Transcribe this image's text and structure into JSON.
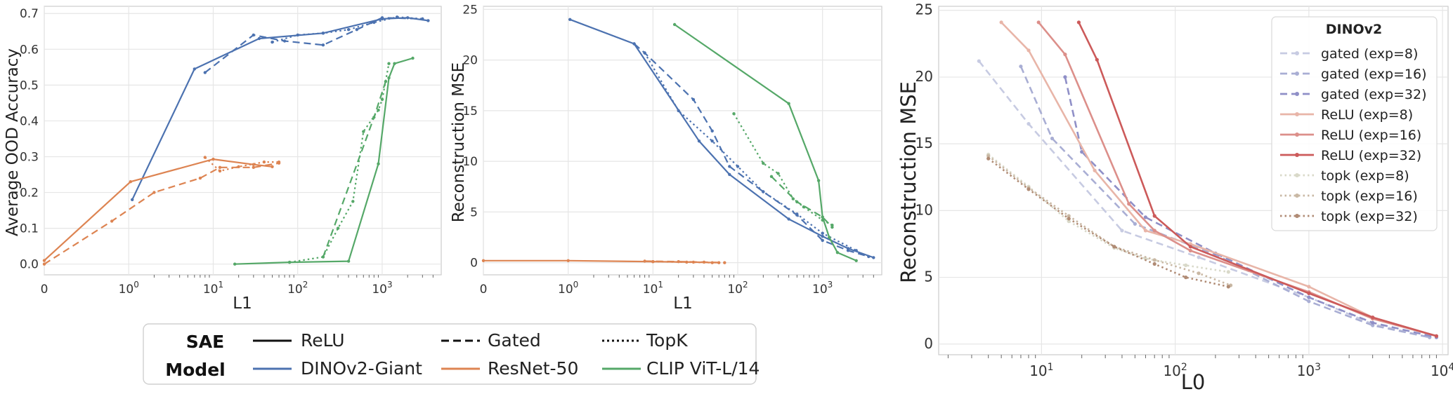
{
  "colors": {
    "DINOv2-Giant": "#4c72b0",
    "ResNet-50": "#dd8452",
    "CLIP ViT-L/14": "#55a868"
  },
  "shared_legend": {
    "sae_header": "SAE",
    "model_header": "Model",
    "sae_items": [
      {
        "label": "ReLU",
        "dash": "solid"
      },
      {
        "label": "Gated",
        "dash": "dashed"
      },
      {
        "label": "TopK",
        "dash": "dotted"
      }
    ],
    "model_items": [
      {
        "label": "DINOv2-Giant",
        "color": "#4c72b0"
      },
      {
        "label": "ResNet-50",
        "color": "#dd8452"
      },
      {
        "label": "CLIP ViT-L/14",
        "color": "#55a868"
      }
    ]
  },
  "chart_data": [
    {
      "type": "line",
      "xlabel": "L1",
      "ylabel": "Average OOD Accuracy",
      "xscale": "symlog",
      "xlim": [
        0,
        5000
      ],
      "ylim": [
        -0.03,
        0.72
      ],
      "xticks": [
        "0",
        "10^0",
        "10^1",
        "10^2",
        "10^3"
      ],
      "yticks": [
        "0.0",
        "0.1",
        "0.2",
        "0.3",
        "0.4",
        "0.5",
        "0.6",
        "0.7"
      ],
      "grid": true,
      "series": [
        {
          "model": "DINOv2-Giant",
          "sae": "ReLU",
          "points": [
            [
              1.1,
              0.18
            ],
            [
              6,
              0.545
            ],
            [
              35,
              0.63
            ],
            [
              200,
              0.645
            ],
            [
              1000,
              0.685
            ],
            [
              2000,
              0.688
            ],
            [
              3500,
              0.68
            ]
          ]
        },
        {
          "model": "DINOv2-Giant",
          "sae": "Gated",
          "points": [
            [
              8,
              0.535
            ],
            [
              30,
              0.64
            ],
            [
              70,
              0.623
            ],
            [
              200,
              0.612
            ],
            [
              500,
              0.655
            ],
            [
              1000,
              0.688
            ],
            [
              3000,
              0.685
            ]
          ]
        },
        {
          "model": "DINOv2-Giant",
          "sae": "TopK",
          "points": [
            [
              50,
              0.62
            ],
            [
              100,
              0.64
            ],
            [
              200,
              0.645
            ],
            [
              400,
              0.655
            ],
            [
              800,
              0.675
            ],
            [
              1500,
              0.69
            ],
            [
              3000,
              0.685
            ]
          ]
        },
        {
          "model": "ResNet-50",
          "sae": "ReLU",
          "points": [
            [
              0,
              0.01
            ],
            [
              1.05,
              0.23
            ],
            [
              10,
              0.293
            ],
            [
              30,
              0.278
            ],
            [
              50,
              0.272
            ]
          ]
        },
        {
          "model": "ResNet-50",
          "sae": "Gated",
          "points": [
            [
              0,
              0.0
            ],
            [
              0.8,
              0.12
            ],
            [
              2,
              0.2
            ],
            [
              7,
              0.24
            ],
            [
              12,
              0.27
            ],
            [
              30,
              0.27
            ],
            [
              60,
              0.282
            ]
          ]
        },
        {
          "model": "ResNet-50",
          "sae": "TopK",
          "points": [
            [
              8,
              0.298
            ],
            [
              12,
              0.26
            ],
            [
              20,
              0.272
            ],
            [
              40,
              0.285
            ],
            [
              60,
              0.285
            ]
          ]
        },
        {
          "model": "CLIP ViT-L/14",
          "sae": "ReLU",
          "points": [
            [
              18,
              0.0
            ],
            [
              80,
              0.005
            ],
            [
              400,
              0.008
            ],
            [
              900,
              0.28
            ],
            [
              1200,
              0.52
            ],
            [
              1400,
              0.56
            ],
            [
              2300,
              0.575
            ]
          ]
        },
        {
          "model": "CLIP ViT-L/14",
          "sae": "Gated",
          "points": [
            [
              200,
              0.02
            ],
            [
              800,
              0.41
            ],
            [
              1100,
              0.51
            ]
          ]
        },
        {
          "model": "CLIP ViT-L/14",
          "sae": "TopK",
          "points": [
            [
              80,
              0.005
            ],
            [
              200,
              0.02
            ],
            [
              300,
              0.1
            ],
            [
              450,
              0.175
            ],
            [
              600,
              0.37
            ],
            [
              900,
              0.43
            ],
            [
              1000,
              0.46
            ],
            [
              1200,
              0.56
            ]
          ]
        }
      ]
    },
    {
      "type": "line",
      "xlabel": "L1",
      "ylabel": "Reconstruction MSE",
      "xscale": "symlog",
      "xlim": [
        0,
        5000
      ],
      "ylim": [
        -1.2,
        25.3
      ],
      "xticks": [
        "0",
        "10^0",
        "10^1",
        "10^2",
        "10^3"
      ],
      "yticks": [
        "0",
        "5",
        "10",
        "15",
        "20",
        "25"
      ],
      "grid": true,
      "series": [
        {
          "model": "DINOv2-Giant",
          "sae": "ReLU",
          "points": [
            [
              1.05,
              24.0
            ],
            [
              6,
              21.6
            ],
            [
              35,
              12.0
            ],
            [
              80,
              8.7
            ],
            [
              400,
              4.3
            ],
            [
              1000,
              2.6
            ],
            [
              2000,
              1.4
            ],
            [
              4000,
              0.5
            ]
          ]
        },
        {
          "model": "DINOv2-Giant",
          "sae": "Gated",
          "points": [
            [
              6,
              21.6
            ],
            [
              8,
              20.7
            ],
            [
              30,
              16.1
            ],
            [
              50,
              13.0
            ],
            [
              80,
              9.5
            ],
            [
              200,
              7.0
            ],
            [
              500,
              4.7
            ],
            [
              1000,
              2.2
            ],
            [
              2000,
              1.2
            ],
            [
              3500,
              0.6
            ]
          ]
        },
        {
          "model": "DINOv2-Giant",
          "sae": "TopK",
          "points": [
            [
              8,
              20.7
            ],
            [
              20,
              15.0
            ],
            [
              50,
              12.0
            ],
            [
              100,
              9.5
            ],
            [
              200,
              7.0
            ],
            [
              500,
              4.8
            ],
            [
              1000,
              2.9
            ],
            [
              2500,
              1.2
            ]
          ]
        },
        {
          "model": "ResNet-50",
          "sae": "ReLU",
          "points": [
            [
              0,
              0.2
            ],
            [
              1,
              0.2
            ],
            [
              10,
              0.1
            ],
            [
              30,
              0.05
            ],
            [
              60,
              0.0
            ]
          ]
        },
        {
          "model": "ResNet-50",
          "sae": "Gated",
          "points": [
            [
              8,
              0.15
            ],
            [
              20,
              0.1
            ],
            [
              40,
              0.05
            ],
            [
              70,
              0.0
            ]
          ]
        },
        {
          "model": "ResNet-50",
          "sae": "TopK",
          "points": [
            [
              10,
              0.1
            ],
            [
              25,
              0.05
            ],
            [
              50,
              0.0
            ]
          ]
        },
        {
          "model": "CLIP ViT-L/14",
          "sae": "ReLU",
          "points": [
            [
              18,
              23.5
            ],
            [
              400,
              15.7
            ],
            [
              900,
              8.1
            ],
            [
              1000,
              4.5
            ],
            [
              1200,
              2.5
            ],
            [
              1500,
              1.0
            ],
            [
              2500,
              0.2
            ]
          ]
        },
        {
          "model": "CLIP ViT-L/14",
          "sae": "Gated",
          "points": [
            [
              250,
              8.5
            ],
            [
              500,
              6.0
            ],
            [
              1000,
              4.5
            ],
            [
              1300,
              3.5
            ]
          ]
        },
        {
          "model": "CLIP ViT-L/14",
          "sae": "TopK",
          "points": [
            [
              90,
              14.7
            ],
            [
              200,
              9.8
            ],
            [
              300,
              8.8
            ],
            [
              450,
              6.3
            ],
            [
              600,
              5.5
            ],
            [
              1000,
              4.2
            ],
            [
              1300,
              3.7
            ]
          ]
        }
      ]
    },
    {
      "type": "line",
      "xlabel": "L0",
      "ylabel": "Reconstruction MSE",
      "xscale": "log",
      "xlim": [
        1.7,
        11000
      ],
      "ylim": [
        -0.8,
        25.3
      ],
      "xticks": [
        "10^1",
        "10^2",
        "10^3",
        "10^4"
      ],
      "yticks": [
        "0",
        "5",
        "10",
        "15",
        "20",
        "25"
      ],
      "grid": true,
      "legend": {
        "title": "DINOv2",
        "position": "upper right"
      },
      "series": [
        {
          "name": "gated (exp=8)",
          "color": "#c7cbe2",
          "dash": "dashed",
          "points": [
            [
              3.4,
              21.2
            ],
            [
              8,
              16.5
            ],
            [
              40,
              8.5
            ],
            [
              150,
              6.5
            ],
            [
              1000,
              3.5
            ],
            [
              3000,
              1.5
            ],
            [
              8000,
              0.5
            ]
          ]
        },
        {
          "name": "gated (exp=16)",
          "color": "#a9aed4",
          "dash": "dashed",
          "points": [
            [
              7,
              20.8
            ],
            [
              12,
              15.4
            ],
            [
              50,
              9.0
            ],
            [
              200,
              6.7
            ],
            [
              1000,
              3.2
            ],
            [
              3000,
              1.4
            ],
            [
              8000,
              0.5
            ]
          ]
        },
        {
          "name": "gated (exp=32)",
          "color": "#8f8fc7",
          "dash": "dashed",
          "points": [
            [
              15,
              20.0
            ],
            [
              20,
              14.4
            ],
            [
              60,
              9.5
            ],
            [
              200,
              6.8
            ],
            [
              1000,
              3.5
            ],
            [
              3000,
              1.6
            ],
            [
              9000,
              0.5
            ]
          ]
        },
        {
          "name": "ReLU (exp=8)",
          "color": "#e8b5a8",
          "dash": "solid",
          "points": [
            [
              5,
              24.1
            ],
            [
              8,
              22.0
            ],
            [
              25,
              13.0
            ],
            [
              60,
              8.5
            ],
            [
              130,
              7.5
            ],
            [
              1000,
              4.3
            ],
            [
              3000,
              2.0
            ],
            [
              9000,
              0.6
            ]
          ]
        },
        {
          "name": "ReLU (exp=16)",
          "color": "#dc8f8a",
          "dash": "solid",
          "points": [
            [
              9.5,
              24.1
            ],
            [
              15,
              21.7
            ],
            [
              45,
              10.5
            ],
            [
              70,
              8.5
            ],
            [
              130,
              7.0
            ],
            [
              1000,
              3.9
            ],
            [
              3000,
              1.9
            ],
            [
              9000,
              0.6
            ]
          ]
        },
        {
          "name": "ReLU (exp=32)",
          "color": "#cc5a5a",
          "dash": "solid",
          "points": [
            [
              19,
              24.1
            ],
            [
              26,
              21.3
            ],
            [
              70,
              9.6
            ],
            [
              130,
              7.3
            ],
            [
              1000,
              3.8
            ],
            [
              3000,
              2.0
            ],
            [
              9000,
              0.6
            ]
          ]
        },
        {
          "name": "topk (exp=8)",
          "color": "#d9d9c9",
          "dash": "dotted",
          "points": [
            [
              4,
              14.2
            ],
            [
              8,
              11.8
            ],
            [
              16,
              9.2
            ],
            [
              35,
              7.2
            ],
            [
              60,
              6.4
            ],
            [
              120,
              5.9
            ],
            [
              250,
              5.4
            ]
          ]
        },
        {
          "name": "topk (exp=16)",
          "color": "#c9b8a4",
          "dash": "dotted",
          "points": [
            [
              4,
              14.1
            ],
            [
              8,
              11.7
            ],
            [
              16,
              9.6
            ],
            [
              35,
              7.3
            ],
            [
              70,
              6.3
            ],
            [
              150,
              5.3
            ],
            [
              260,
              4.4
            ]
          ]
        },
        {
          "name": "topk (exp=32)",
          "color": "#b08b74",
          "dash": "dotted",
          "points": [
            [
              4,
              13.9
            ],
            [
              8,
              11.6
            ],
            [
              16,
              9.4
            ],
            [
              35,
              7.3
            ],
            [
              70,
              6.0
            ],
            [
              120,
              5.0
            ],
            [
              250,
              4.3
            ]
          ]
        }
      ]
    }
  ]
}
